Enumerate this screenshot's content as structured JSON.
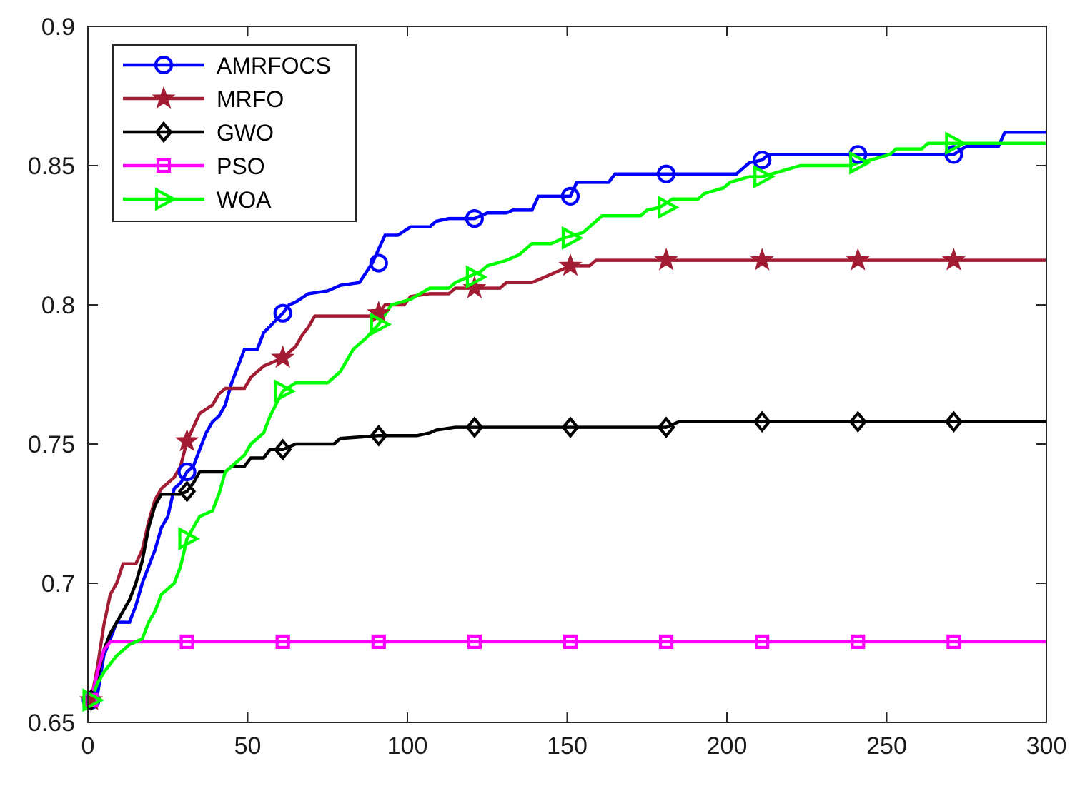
{
  "chart_data": {
    "type": "line",
    "title": "",
    "xlabel": "",
    "ylabel": "",
    "xlim": [
      0,
      300
    ],
    "ylim": [
      0.65,
      0.9
    ],
    "x_ticks": [
      0,
      50,
      100,
      150,
      200,
      250,
      300
    ],
    "x_tick_labels": [
      "0",
      "50",
      "100",
      "150",
      "200",
      "250",
      "300"
    ],
    "y_ticks": [
      0.65,
      0.7,
      0.75,
      0.8,
      0.85,
      0.9
    ],
    "y_tick_labels": [
      "0.65",
      "0.7",
      "0.75",
      "0.8",
      "0.85",
      "0.9"
    ],
    "grid": false,
    "legend_position": "top-left",
    "marker_x": [
      1,
      31,
      61,
      91,
      121,
      151,
      181,
      211,
      241,
      271
    ],
    "series": [
      {
        "name": "AMRFOCS",
        "color": "#0000ff",
        "marker": "circle",
        "points": [
          [
            1,
            0.658
          ],
          [
            3,
            0.66
          ],
          [
            5,
            0.674
          ],
          [
            7,
            0.68
          ],
          [
            9,
            0.686
          ],
          [
            13,
            0.686
          ],
          [
            15,
            0.692
          ],
          [
            17,
            0.7
          ],
          [
            19,
            0.706
          ],
          [
            21,
            0.712
          ],
          [
            23,
            0.72
          ],
          [
            25,
            0.724
          ],
          [
            27,
            0.734
          ],
          [
            29,
            0.736
          ],
          [
            31,
            0.74
          ],
          [
            33,
            0.742
          ],
          [
            35,
            0.748
          ],
          [
            37,
            0.754
          ],
          [
            39,
            0.758
          ],
          [
            41,
            0.76
          ],
          [
            43,
            0.764
          ],
          [
            45,
            0.772
          ],
          [
            47,
            0.778
          ],
          [
            49,
            0.784
          ],
          [
            53,
            0.784
          ],
          [
            55,
            0.79
          ],
          [
            61,
            0.797
          ],
          [
            63,
            0.8
          ],
          [
            65,
            0.801
          ],
          [
            69,
            0.804
          ],
          [
            75,
            0.805
          ],
          [
            79,
            0.807
          ],
          [
            85,
            0.808
          ],
          [
            89,
            0.815
          ],
          [
            93,
            0.825
          ],
          [
            97,
            0.825
          ],
          [
            101,
            0.828
          ],
          [
            107,
            0.828
          ],
          [
            109,
            0.83
          ],
          [
            113,
            0.831
          ],
          [
            117,
            0.831
          ],
          [
            121,
            0.831
          ],
          [
            125,
            0.833
          ],
          [
            131,
            0.833
          ],
          [
            133,
            0.834
          ],
          [
            139,
            0.834
          ],
          [
            141,
            0.839
          ],
          [
            151,
            0.839
          ],
          [
            153,
            0.844
          ],
          [
            163,
            0.844
          ],
          [
            165,
            0.847
          ],
          [
            181,
            0.847
          ],
          [
            203,
            0.847
          ],
          [
            207,
            0.851
          ],
          [
            211,
            0.852
          ],
          [
            213,
            0.854
          ],
          [
            241,
            0.854
          ],
          [
            271,
            0.854
          ],
          [
            275,
            0.857
          ],
          [
            285,
            0.857
          ],
          [
            287,
            0.862
          ],
          [
            300,
            0.862
          ]
        ]
      },
      {
        "name": "MRFO",
        "color": "#a21c34",
        "marker": "star",
        "points": [
          [
            1,
            0.658
          ],
          [
            3,
            0.67
          ],
          [
            5,
            0.685
          ],
          [
            7,
            0.696
          ],
          [
            9,
            0.7
          ],
          [
            11,
            0.707
          ],
          [
            15,
            0.707
          ],
          [
            17,
            0.712
          ],
          [
            19,
            0.722
          ],
          [
            21,
            0.73
          ],
          [
            23,
            0.734
          ],
          [
            25,
            0.736
          ],
          [
            27,
            0.738
          ],
          [
            29,
            0.742
          ],
          [
            31,
            0.751
          ],
          [
            33,
            0.756
          ],
          [
            35,
            0.761
          ],
          [
            39,
            0.764
          ],
          [
            41,
            0.768
          ],
          [
            43,
            0.77
          ],
          [
            49,
            0.77
          ],
          [
            51,
            0.774
          ],
          [
            53,
            0.776
          ],
          [
            55,
            0.778
          ],
          [
            59,
            0.78
          ],
          [
            61,
            0.781
          ],
          [
            65,
            0.785
          ],
          [
            67,
            0.789
          ],
          [
            69,
            0.792
          ],
          [
            71,
            0.796
          ],
          [
            89,
            0.796
          ],
          [
            91,
            0.797
          ],
          [
            93,
            0.8
          ],
          [
            99,
            0.8
          ],
          [
            101,
            0.803
          ],
          [
            107,
            0.804
          ],
          [
            113,
            0.804
          ],
          [
            115,
            0.806
          ],
          [
            121,
            0.806
          ],
          [
            129,
            0.806
          ],
          [
            131,
            0.808
          ],
          [
            139,
            0.808
          ],
          [
            143,
            0.81
          ],
          [
            147,
            0.812
          ],
          [
            151,
            0.814
          ],
          [
            157,
            0.814
          ],
          [
            159,
            0.816
          ],
          [
            181,
            0.816
          ],
          [
            211,
            0.816
          ],
          [
            241,
            0.816
          ],
          [
            271,
            0.816
          ],
          [
            300,
            0.816
          ]
        ]
      },
      {
        "name": "GWO",
        "color": "#000000",
        "marker": "diamond",
        "points": [
          [
            1,
            0.658
          ],
          [
            3,
            0.666
          ],
          [
            5,
            0.676
          ],
          [
            7,
            0.682
          ],
          [
            9,
            0.686
          ],
          [
            11,
            0.69
          ],
          [
            13,
            0.694
          ],
          [
            15,
            0.7
          ],
          [
            17,
            0.708
          ],
          [
            19,
            0.72
          ],
          [
            21,
            0.728
          ],
          [
            23,
            0.732
          ],
          [
            29,
            0.732
          ],
          [
            31,
            0.733
          ],
          [
            33,
            0.736
          ],
          [
            35,
            0.74
          ],
          [
            43,
            0.74
          ],
          [
            45,
            0.742
          ],
          [
            49,
            0.742
          ],
          [
            51,
            0.745
          ],
          [
            55,
            0.745
          ],
          [
            57,
            0.748
          ],
          [
            61,
            0.748
          ],
          [
            65,
            0.75
          ],
          [
            73,
            0.75
          ],
          [
            77,
            0.75
          ],
          [
            79,
            0.752
          ],
          [
            91,
            0.753
          ],
          [
            103,
            0.753
          ],
          [
            107,
            0.754
          ],
          [
            109,
            0.755
          ],
          [
            115,
            0.756
          ],
          [
            121,
            0.756
          ],
          [
            151,
            0.756
          ],
          [
            181,
            0.756
          ],
          [
            185,
            0.758
          ],
          [
            211,
            0.758
          ],
          [
            241,
            0.758
          ],
          [
            271,
            0.758
          ],
          [
            300,
            0.758
          ]
        ]
      },
      {
        "name": "PSO",
        "color": "#ff00ff",
        "marker": "square",
        "points": [
          [
            1,
            0.658
          ],
          [
            3,
            0.668
          ],
          [
            5,
            0.676
          ],
          [
            7,
            0.679
          ],
          [
            31,
            0.679
          ],
          [
            61,
            0.679
          ],
          [
            91,
            0.679
          ],
          [
            121,
            0.679
          ],
          [
            151,
            0.679
          ],
          [
            181,
            0.679
          ],
          [
            211,
            0.679
          ],
          [
            241,
            0.679
          ],
          [
            271,
            0.679
          ],
          [
            300,
            0.679
          ]
        ]
      },
      {
        "name": "WOA",
        "color": "#00ff00",
        "marker": "triangle-right",
        "points": [
          [
            1,
            0.658
          ],
          [
            3,
            0.664
          ],
          [
            5,
            0.668
          ],
          [
            9,
            0.674
          ],
          [
            13,
            0.678
          ],
          [
            17,
            0.68
          ],
          [
            19,
            0.686
          ],
          [
            21,
            0.69
          ],
          [
            23,
            0.696
          ],
          [
            27,
            0.7
          ],
          [
            29,
            0.706
          ],
          [
            31,
            0.716
          ],
          [
            33,
            0.72
          ],
          [
            35,
            0.724
          ],
          [
            39,
            0.726
          ],
          [
            41,
            0.732
          ],
          [
            43,
            0.74
          ],
          [
            47,
            0.744
          ],
          [
            49,
            0.746
          ],
          [
            51,
            0.75
          ],
          [
            55,
            0.754
          ],
          [
            57,
            0.76
          ],
          [
            61,
            0.769
          ],
          [
            65,
            0.772
          ],
          [
            75,
            0.772
          ],
          [
            79,
            0.776
          ],
          [
            81,
            0.78
          ],
          [
            83,
            0.784
          ],
          [
            87,
            0.788
          ],
          [
            91,
            0.793
          ],
          [
            95,
            0.8
          ],
          [
            101,
            0.802
          ],
          [
            107,
            0.806
          ],
          [
            113,
            0.806
          ],
          [
            115,
            0.808
          ],
          [
            119,
            0.81
          ],
          [
            123,
            0.812
          ],
          [
            125,
            0.814
          ],
          [
            131,
            0.816
          ],
          [
            135,
            0.818
          ],
          [
            139,
            0.822
          ],
          [
            145,
            0.822
          ],
          [
            149,
            0.824
          ],
          [
            155,
            0.826
          ],
          [
            159,
            0.83
          ],
          [
            161,
            0.832
          ],
          [
            173,
            0.832
          ],
          [
            175,
            0.834
          ],
          [
            179,
            0.835
          ],
          [
            183,
            0.838
          ],
          [
            191,
            0.838
          ],
          [
            193,
            0.84
          ],
          [
            199,
            0.842
          ],
          [
            201,
            0.844
          ],
          [
            207,
            0.846
          ],
          [
            211,
            0.846
          ],
          [
            217,
            0.848
          ],
          [
            223,
            0.85
          ],
          [
            231,
            0.85
          ],
          [
            239,
            0.85
          ],
          [
            241,
            0.851
          ],
          [
            245,
            0.852
          ],
          [
            251,
            0.854
          ],
          [
            253,
            0.856
          ],
          [
            261,
            0.856
          ],
          [
            263,
            0.858
          ],
          [
            300,
            0.858
          ]
        ]
      }
    ]
  }
}
